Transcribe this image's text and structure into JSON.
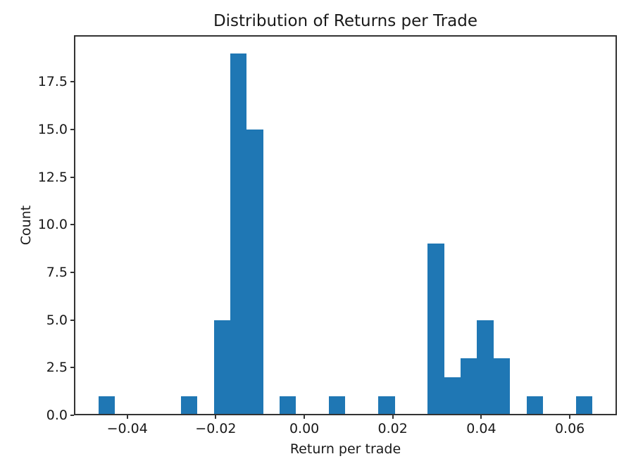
{
  "chart_data": {
    "type": "bar",
    "subtype": "histogram",
    "title": "Distribution of Returns per Trade",
    "xlabel": "Return per trade",
    "ylabel": "Count",
    "bar_color": "#1f77b4",
    "axis_color": "#333333",
    "text_color": "#191919",
    "grid": false,
    "legend": null,
    "n_bins": 30,
    "bins": {
      "start": -0.04647,
      "width": 0.003718,
      "counts": [
        1,
        0,
        0,
        0,
        0,
        1,
        0,
        5,
        19,
        15,
        0,
        1,
        0,
        0,
        1,
        0,
        0,
        1,
        0,
        0,
        9,
        2,
        3,
        5,
        3,
        0,
        1,
        0,
        0,
        1
      ]
    },
    "xlim": [
      -0.05205,
      0.07065
    ],
    "ylim": [
      0,
      19.95
    ],
    "xticks": [
      {
        "v": -0.04,
        "label": "−0.04"
      },
      {
        "v": -0.02,
        "label": "−0.02"
      },
      {
        "v": 0.0,
        "label": "0.00"
      },
      {
        "v": 0.02,
        "label": "0.02"
      },
      {
        "v": 0.04,
        "label": "0.04"
      },
      {
        "v": 0.06,
        "label": "0.06"
      }
    ],
    "yticks": [
      {
        "v": 0,
        "label": "0.0"
      },
      {
        "v": 2.5,
        "label": "2.5"
      },
      {
        "v": 5,
        "label": "5.0"
      },
      {
        "v": 7.5,
        "label": "7.5"
      },
      {
        "v": 10,
        "label": "10.0"
      },
      {
        "v": 12.5,
        "label": "12.5"
      },
      {
        "v": 15,
        "label": "15.0"
      },
      {
        "v": 17.5,
        "label": "17.5"
      }
    ]
  }
}
